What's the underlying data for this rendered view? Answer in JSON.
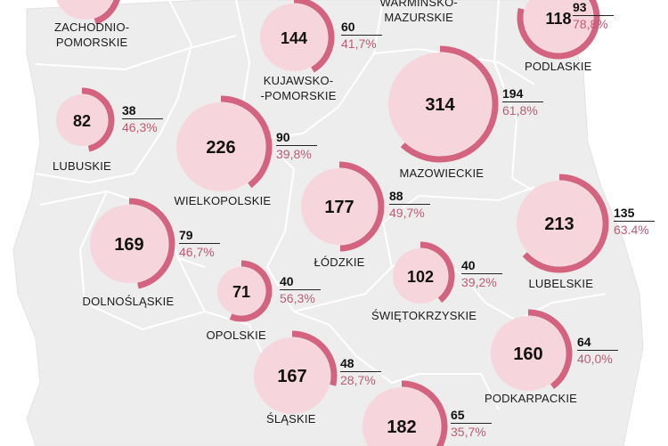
{
  "colors": {
    "background": "#ffffff",
    "land": "#ededed",
    "border": "#ffffff",
    "bubble": "#f7d5dc",
    "arc": "#d4637f",
    "percent": "#c05a74"
  },
  "regions": [
    {
      "id": "zachodniopomorskie",
      "name_lines": [
        "ZACHODNIO-",
        "POMORSKIE"
      ],
      "total": "",
      "count": "",
      "percent": "",
      "share": 0.45
    },
    {
      "id": "warminsko-mazurskie",
      "name_lines": [
        "WARMIŃSKO-",
        "MAZURSKIE"
      ],
      "total": "",
      "count": "",
      "percent": "",
      "share": 0
    },
    {
      "id": "podlaskie",
      "name_lines": [
        "PODLASKIE"
      ],
      "total": "118",
      "count": "93",
      "percent": "78,8%",
      "share": 0.788
    },
    {
      "id": "kujawsko-pomorskie",
      "name_lines": [
        "KUJAWSKO-",
        "-POMORSKIE"
      ],
      "total": "144",
      "count": "60",
      "percent": "41,7%",
      "share": 0.417
    },
    {
      "id": "lubuskie",
      "name_lines": [
        "LUBUSKIE"
      ],
      "total": "82",
      "count": "38",
      "percent": "46,3%",
      "share": 0.463
    },
    {
      "id": "wielkopolskie",
      "name_lines": [
        "WIELKOPOLSKIE"
      ],
      "total": "226",
      "count": "90",
      "percent": "39,8%",
      "share": 0.398
    },
    {
      "id": "mazowieckie",
      "name_lines": [
        "MAZOWIECKIE"
      ],
      "total": "314",
      "count": "194",
      "percent": "61,8%",
      "share": 0.618
    },
    {
      "id": "lodzkie",
      "name_lines": [
        "ŁÓDZKIE"
      ],
      "total": "177",
      "count": "88",
      "percent": "49,7%",
      "share": 0.497
    },
    {
      "id": "lubelskie",
      "name_lines": [
        "LUBELSKIE"
      ],
      "total": "213",
      "count": "135",
      "percent": "63.4%",
      "share": 0.634
    },
    {
      "id": "dolnoslaskie",
      "name_lines": [
        "DOLNOŚLĄSKIE"
      ],
      "total": "169",
      "count": "79",
      "percent": "46,7%",
      "share": 0.467
    },
    {
      "id": "opolskie",
      "name_lines": [
        "OPOLSKIE"
      ],
      "total": "71",
      "count": "40",
      "percent": "56,3%",
      "share": 0.563
    },
    {
      "id": "swietokrzyskie",
      "name_lines": [
        "ŚWIĘTOKRZYSKIE"
      ],
      "total": "102",
      "count": "40",
      "percent": "39,2%",
      "share": 0.392
    },
    {
      "id": "podkarpackie",
      "name_lines": [
        "PODKARPACKIE"
      ],
      "total": "160",
      "count": "64",
      "percent": "40,0%",
      "share": 0.4
    },
    {
      "id": "slaskie",
      "name_lines": [
        "ŚLĄSKIE"
      ],
      "total": "167",
      "count": "48",
      "percent": "28,7%",
      "share": 0.287
    },
    {
      "id": "malopolskie",
      "name_lines": [],
      "total": "182",
      "count": "65",
      "percent": "35,7%",
      "share": 0.357
    }
  ]
}
